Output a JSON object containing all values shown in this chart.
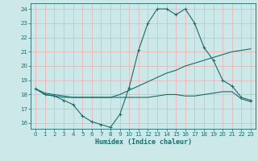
{
  "xlabel": "Humidex (Indice chaleur)",
  "background_color": "#cce8e8",
  "grid_color": "#e8b8b8",
  "line_color": "#1a6b6b",
  "xlim": [
    -0.5,
    23.5
  ],
  "ylim": [
    15.6,
    24.4
  ],
  "xticks": [
    0,
    1,
    2,
    3,
    4,
    5,
    6,
    7,
    8,
    9,
    10,
    11,
    12,
    13,
    14,
    15,
    16,
    17,
    18,
    19,
    20,
    21,
    22,
    23
  ],
  "yticks": [
    16,
    17,
    18,
    19,
    20,
    21,
    22,
    23,
    24
  ],
  "series1_x": [
    0,
    1,
    2,
    3,
    4,
    5,
    6,
    7,
    8,
    9,
    10,
    11,
    12,
    13,
    14,
    15,
    16,
    17,
    18,
    19,
    20,
    21,
    22,
    23
  ],
  "series1_y": [
    18.4,
    18.0,
    17.9,
    17.6,
    17.3,
    16.5,
    16.1,
    15.9,
    15.7,
    16.6,
    18.5,
    21.1,
    23.0,
    24.0,
    24.0,
    23.6,
    24.0,
    23.0,
    21.3,
    20.4,
    19.0,
    18.6,
    17.8,
    17.6
  ],
  "series2_x": [
    0,
    1,
    2,
    3,
    4,
    5,
    6,
    7,
    8,
    9,
    10,
    11,
    12,
    13,
    14,
    15,
    16,
    17,
    18,
    19,
    20,
    21,
    22,
    23
  ],
  "series2_y": [
    18.4,
    18.1,
    18.0,
    17.9,
    17.8,
    17.8,
    17.8,
    17.8,
    17.8,
    18.0,
    18.3,
    18.6,
    18.9,
    19.2,
    19.5,
    19.7,
    20.0,
    20.2,
    20.4,
    20.6,
    20.8,
    21.0,
    21.1,
    21.2
  ],
  "series3_x": [
    0,
    1,
    2,
    3,
    4,
    5,
    6,
    7,
    8,
    9,
    10,
    11,
    12,
    13,
    14,
    15,
    16,
    17,
    18,
    19,
    20,
    21,
    22,
    23
  ],
  "series3_y": [
    18.4,
    18.0,
    17.9,
    17.8,
    17.8,
    17.8,
    17.8,
    17.8,
    17.8,
    17.8,
    17.8,
    17.8,
    17.8,
    17.9,
    18.0,
    18.0,
    17.9,
    17.9,
    18.0,
    18.1,
    18.2,
    18.2,
    17.7,
    17.5
  ]
}
